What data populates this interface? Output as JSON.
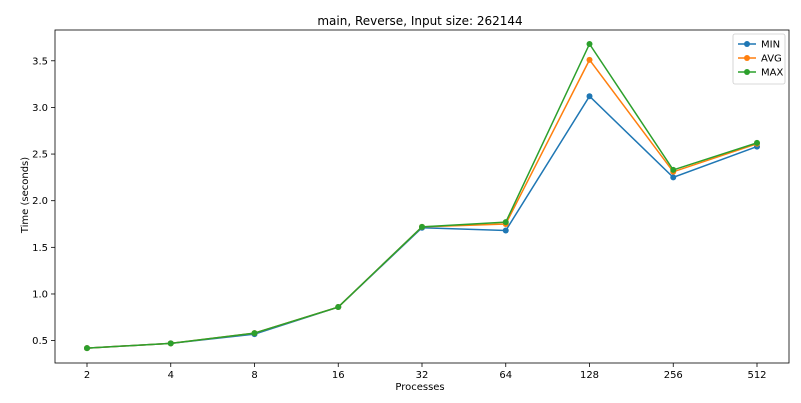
{
  "chart_data": {
    "type": "line",
    "title": "main, Reverse, Input size: 262144",
    "xlabel": "Processes",
    "ylabel": "Time (seconds)",
    "categories": [
      "2",
      "4",
      "8",
      "16",
      "32",
      "64",
      "128",
      "256",
      "512"
    ],
    "ylim": [
      0.26,
      3.83
    ],
    "yticks": [
      0.5,
      1.0,
      1.5,
      2.0,
      2.5,
      3.0,
      3.5
    ],
    "ytick_labels": [
      "0.5",
      "1.0",
      "1.5",
      "2.0",
      "2.5",
      "3.0",
      "3.5"
    ],
    "grid": false,
    "legend_position": "top-right",
    "series": [
      {
        "name": "MIN",
        "color": "#1f77b4",
        "values": [
          0.42,
          0.47,
          0.57,
          0.86,
          1.71,
          1.68,
          3.12,
          2.25,
          2.58
        ]
      },
      {
        "name": "AVG",
        "color": "#ff7f0e",
        "values": [
          0.42,
          0.47,
          0.58,
          0.86,
          1.72,
          1.75,
          3.51,
          2.31,
          2.61
        ]
      },
      {
        "name": "MAX",
        "color": "#2ca02c",
        "values": [
          0.42,
          0.47,
          0.58,
          0.86,
          1.72,
          1.77,
          3.68,
          2.33,
          2.62
        ]
      }
    ]
  }
}
